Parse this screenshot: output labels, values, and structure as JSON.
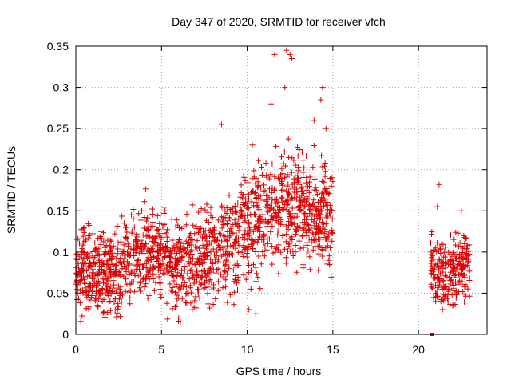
{
  "chart_data": {
    "type": "scatter",
    "title": "Day 347 of 2020, SRMTID for receiver vfch",
    "xlabel": "GPS time / hours",
    "ylabel": "SRMTID / TECUs",
    "xlim": [
      0,
      24
    ],
    "ylim": [
      0,
      0.35
    ],
    "xticks": [
      0,
      5,
      10,
      15,
      20
    ],
    "xtick_labels": [
      "0",
      "5",
      "10",
      "15",
      "20"
    ],
    "yticks": [
      0,
      0.05,
      0.1,
      0.15,
      0.2,
      0.25,
      0.3,
      0.35
    ],
    "ytick_labels": [
      "0",
      "0.05",
      "0.1",
      "0.15",
      "0.2",
      "0.25",
      "0.3",
      "0.35"
    ],
    "grid": true,
    "marker": "+",
    "series_color": "#dd0000",
    "series": [
      {
        "name": "SRMTID",
        "segments": [
          {
            "range": [
              0.0,
              15.0
            ],
            "points_per_hour": 110,
            "profile": [
              [
                0.0,
                0.08
              ],
              [
                1.0,
                0.075
              ],
              [
                2.0,
                0.07
              ],
              [
                3.0,
                0.09
              ],
              [
                4.0,
                0.1
              ],
              [
                5.0,
                0.1
              ],
              [
                6.0,
                0.085
              ],
              [
                7.0,
                0.085
              ],
              [
                8.0,
                0.095
              ],
              [
                9.0,
                0.11
              ],
              [
                10.0,
                0.13
              ],
              [
                11.0,
                0.145
              ],
              [
                12.0,
                0.16
              ],
              [
                13.0,
                0.155
              ],
              [
                14.0,
                0.15
              ],
              [
                15.0,
                0.14
              ]
            ],
            "spread": 0.035
          },
          {
            "range": [
              20.7,
              23.0
            ],
            "points_per_hour": 110,
            "profile": [
              [
                20.7,
                0.08
              ],
              [
                21.5,
                0.075
              ],
              [
                22.3,
                0.08
              ],
              [
                23.0,
                0.085
              ]
            ],
            "spread": 0.028
          }
        ],
        "extra_points": [
          [
            12.3,
            0.345
          ],
          [
            12.5,
            0.34
          ],
          [
            12.6,
            0.335
          ],
          [
            11.6,
            0.34
          ],
          [
            12.2,
            0.3
          ],
          [
            14.4,
            0.3
          ],
          [
            14.3,
            0.285
          ],
          [
            8.5,
            0.255
          ],
          [
            11.4,
            0.28
          ],
          [
            13.9,
            0.26
          ],
          [
            14.6,
            0.25
          ],
          [
            10.3,
            0.23
          ],
          [
            21.2,
            0.182
          ],
          [
            21.1,
            0.155
          ],
          [
            22.5,
            0.15
          ],
          [
            6.1,
            0.015
          ],
          [
            6.0,
            0.02
          ],
          [
            10.5,
            0.025
          ],
          [
            10.1,
            0.03
          ],
          [
            21.4,
            0.03
          ],
          [
            21.0,
            0.04
          ],
          [
            22.0,
            0.035
          ]
        ]
      }
    ],
    "markers": [
      [
        20.8,
        0.0
      ]
    ]
  }
}
